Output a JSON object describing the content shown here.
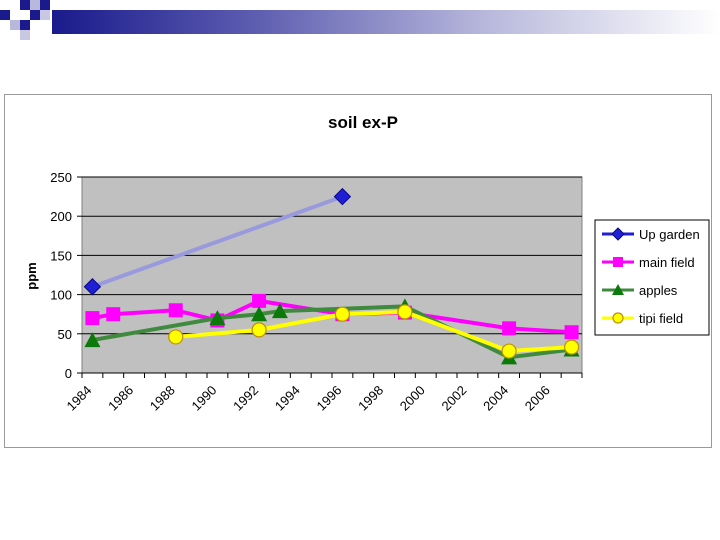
{
  "slide": {
    "accent": "#1a1a8c"
  },
  "chart_data": {
    "type": "line",
    "title": "soil ex-P",
    "xlabel": "",
    "ylabel": "ppm",
    "ylim": [
      0,
      250
    ],
    "yticks": [
      0,
      50,
      100,
      150,
      200,
      250
    ],
    "xlim": [
      1984,
      2008
    ],
    "xticks": [
      "1984",
      "1986",
      "1988",
      "1990",
      "1992",
      "1994",
      "1996",
      "1998",
      "2000",
      "2002",
      "2004",
      "2006"
    ],
    "grid": true,
    "legend_position": "right",
    "series": [
      {
        "name": "Up garden",
        "color": "#1f1fd6",
        "line_color": "#9999dd",
        "marker": "diamond",
        "x": [
          1984.5,
          1996.5
        ],
        "values": [
          110,
          225
        ]
      },
      {
        "name": "main field",
        "color": "#ff00ff",
        "line_color": "#ff00ff",
        "marker": "square",
        "x": [
          1984.5,
          1985.5,
          1988.5,
          1990.5,
          1992.5,
          1996.5,
          1999.5,
          2004.5,
          2007.5
        ],
        "values": [
          70,
          75,
          80,
          67,
          92,
          75,
          77,
          57,
          52
        ]
      },
      {
        "name": "apples",
        "color": "#0b7a0b",
        "line_color": "#3f8a3f",
        "marker": "triangle",
        "x": [
          1984.5,
          1990.5,
          1992.5,
          1993.5,
          1999.5,
          2004.5,
          2007.5
        ],
        "values": [
          42,
          70,
          75,
          79,
          85,
          20,
          30
        ]
      },
      {
        "name": "tipi field",
        "color": "#ffff00",
        "line_color": "#ffff00",
        "marker": "circle",
        "x": [
          1988.5,
          1992.5,
          1996.5,
          1999.5,
          2004.5,
          2007.5
        ],
        "values": [
          46,
          55,
          75,
          78,
          28,
          33
        ]
      }
    ]
  }
}
